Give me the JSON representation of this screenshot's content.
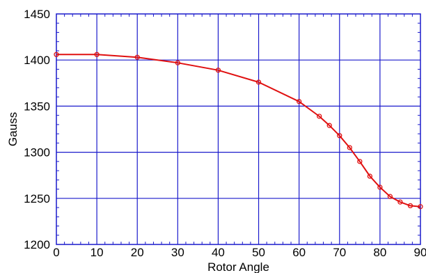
{
  "chart_data": {
    "type": "line",
    "xlabel": "Rotor Angle",
    "ylabel": "Gauss",
    "xlim": [
      0,
      90
    ],
    "ylim": [
      1200,
      1450
    ],
    "xticks": [
      0,
      10,
      20,
      30,
      40,
      50,
      60,
      70,
      80,
      90
    ],
    "yticks": [
      1200,
      1250,
      1300,
      1350,
      1400,
      1450
    ],
    "grid": true,
    "series": [
      {
        "x": [
          0,
          10,
          20,
          30,
          40,
          50,
          60,
          65,
          67.5,
          70,
          72.5,
          75,
          77.5,
          80,
          82.5,
          85,
          87.5,
          90
        ],
        "y": [
          1406,
          1406,
          1403,
          1397,
          1389,
          1376,
          1355,
          1339,
          1329,
          1318,
          1305,
          1290,
          1274,
          1262,
          1252,
          1246,
          1242,
          1241
        ]
      }
    ],
    "colors": {
      "grid": "#1a1acc",
      "series": "#e01010",
      "axes": "#1a1acc"
    }
  }
}
